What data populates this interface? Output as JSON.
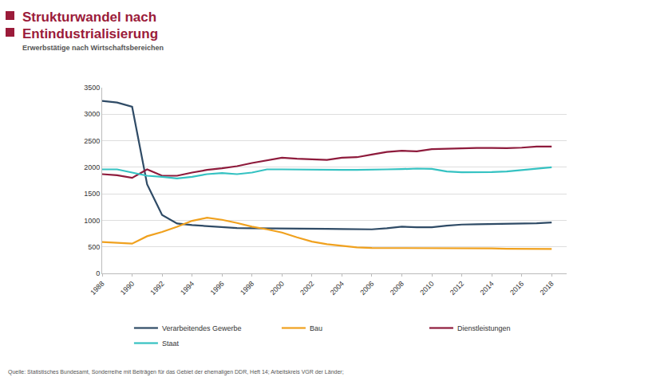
{
  "chart_data": {
    "type": "line",
    "title": [
      "Strukturwandel nach",
      "Entindustrialisierung"
    ],
    "subtitle": "Erwerbstätige nach Wirtschaftsbereichen",
    "source": "Quelle: Statistisches Bundesamt, Sonderreihe mit Beiträgen für das Gebiet der ehemaligen DDR, Heft 14; Arbeitskreis VGR der Länder;",
    "x": [
      1988,
      1989,
      1990,
      1991,
      1992,
      1993,
      1994,
      1995,
      1996,
      1997,
      1998,
      1999,
      2000,
      2001,
      2002,
      2003,
      2004,
      2005,
      2006,
      2007,
      2008,
      2009,
      2010,
      2011,
      2012,
      2013,
      2014,
      2015,
      2016,
      2017,
      2018
    ],
    "series": [
      {
        "name": "Verarbeitendes Gewerbe",
        "color": "#2f4b66",
        "values": [
          3250,
          3220,
          3140,
          1680,
          1100,
          940,
          910,
          890,
          870,
          855,
          850,
          850,
          850,
          850,
          845,
          840,
          835,
          830,
          830,
          850,
          880,
          870,
          870,
          900,
          920,
          925,
          930,
          935,
          935,
          945,
          960
        ]
      },
      {
        "name": "Bau",
        "color": "#f0a11e",
        "values": [
          590,
          570,
          560,
          700,
          780,
          880,
          990,
          1050,
          1010,
          950,
          880,
          830,
          770,
          680,
          600,
          550,
          520,
          490,
          480,
          480,
          480,
          475,
          475,
          480,
          480,
          475,
          470,
          465,
          460,
          460,
          460
        ]
      },
      {
        "name": "Dienstleistungen",
        "color": "#8e1b3c",
        "values": [
          1870,
          1850,
          1800,
          1960,
          1840,
          1840,
          1900,
          1950,
          1980,
          2020,
          2080,
          2130,
          2180,
          2160,
          2150,
          2140,
          2180,
          2190,
          2240,
          2290,
          2310,
          2300,
          2340,
          2350,
          2360,
          2365,
          2365,
          2360,
          2370,
          2390,
          2390
        ]
      },
      {
        "name": "Staat",
        "color": "#35c2c2",
        "values": [
          1960,
          1960,
          1900,
          1840,
          1820,
          1790,
          1820,
          1870,
          1890,
          1870,
          1900,
          1960,
          1960,
          1955,
          1960,
          1950,
          1950,
          1950,
          1960,
          1960,
          1965,
          1975,
          1970,
          1920,
          1905,
          1905,
          1910,
          1920,
          1950,
          1975,
          2000
        ]
      }
    ],
    "xlim": [
      1988,
      2019
    ],
    "ylim": [
      0,
      3500
    ],
    "xticks": [
      1988,
      1990,
      1992,
      1994,
      1996,
      1998,
      2000,
      2002,
      2004,
      2006,
      2008,
      2010,
      2012,
      2014,
      2016,
      2018
    ],
    "yticks": [
      0,
      500,
      1000,
      1500,
      2000,
      2500,
      3000,
      3500
    ],
    "grid": true,
    "legend": "bottom"
  }
}
